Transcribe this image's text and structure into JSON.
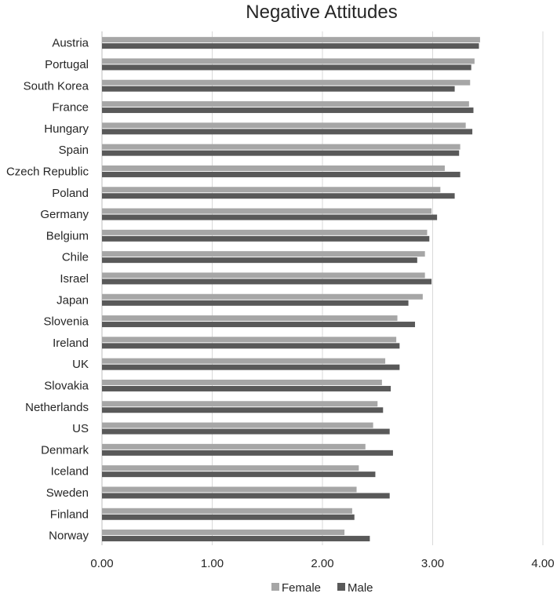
{
  "chart_data": {
    "type": "bar",
    "orientation": "horizontal",
    "title": "Negative Attitudes",
    "xlabel": "",
    "ylabel": "",
    "xlim": [
      0,
      4
    ],
    "grid": true,
    "legend_position": "bottom",
    "x_ticks": [
      "0.00",
      "1.00",
      "2.00",
      "3.00",
      "4.00"
    ],
    "categories": [
      "Austria",
      "Portugal",
      "South Korea",
      "France",
      "Hungary",
      "Spain",
      "Czech Republic",
      "Poland",
      "Germany",
      "Belgium",
      "Chile",
      "Israel",
      "Japan",
      "Slovenia",
      "Ireland",
      "UK",
      "Slovakia",
      "Netherlands",
      "US",
      "Denmark",
      "Iceland",
      "Sweden",
      "Finland",
      "Norway"
    ],
    "series": [
      {
        "name": "Female",
        "color": "#a6a6a6",
        "values": [
          3.43,
          3.38,
          3.34,
          3.33,
          3.3,
          3.25,
          3.11,
          3.07,
          2.99,
          2.95,
          2.93,
          2.93,
          2.91,
          2.68,
          2.67,
          2.57,
          2.54,
          2.5,
          2.46,
          2.39,
          2.33,
          2.31,
          2.27,
          2.2
        ]
      },
      {
        "name": "Male",
        "color": "#595959",
        "values": [
          3.42,
          3.35,
          3.2,
          3.37,
          3.36,
          3.24,
          3.25,
          3.2,
          3.04,
          2.97,
          2.86,
          2.99,
          2.78,
          2.84,
          2.7,
          2.7,
          2.62,
          2.55,
          2.61,
          2.64,
          2.48,
          2.61,
          2.29,
          2.43
        ]
      }
    ]
  }
}
